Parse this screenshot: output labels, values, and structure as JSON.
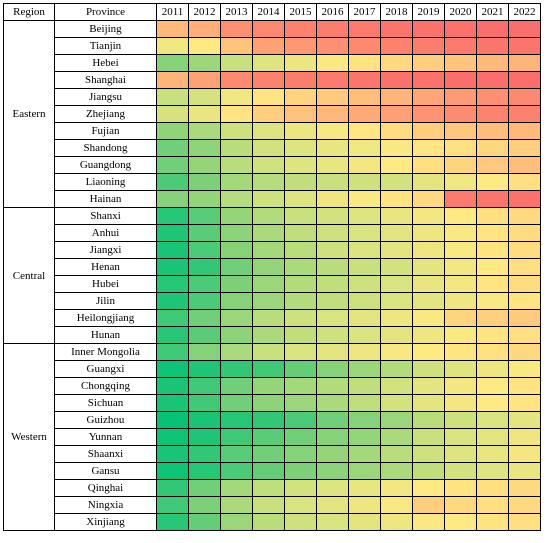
{
  "chart_data": {
    "type": "heatmap",
    "title": "",
    "xlabel": "",
    "ylabel": "",
    "header": {
      "region": "Region",
      "province": "Province"
    },
    "columns": [
      "2011",
      "2012",
      "2013",
      "2014",
      "2015",
      "2016",
      "2017",
      "2018",
      "2019",
      "2020",
      "2021",
      "2022"
    ],
    "value_range": [
      0,
      1
    ],
    "color_scale": [
      "#00c176",
      "#7dd078",
      "#c8e07e",
      "#ffe982",
      "#ffb579",
      "#fa6a6a"
    ],
    "groups": [
      {
        "region": "Eastern",
        "rows": [
          {
            "name": "Beijing",
            "values": [
              0.78,
              0.82,
              0.9,
              0.92,
              0.94,
              0.95,
              0.96,
              0.97,
              0.98,
              0.98,
              0.99,
              0.99
            ]
          },
          {
            "name": "Tianjin",
            "values": [
              0.55,
              0.6,
              0.75,
              0.85,
              0.88,
              0.9,
              0.92,
              0.94,
              0.95,
              0.96,
              0.97,
              0.97
            ]
          },
          {
            "name": "Hebei",
            "values": [
              0.22,
              0.28,
              0.4,
              0.48,
              0.53,
              0.58,
              0.62,
              0.66,
              0.7,
              0.74,
              0.78,
              0.8
            ]
          },
          {
            "name": "Shanghai",
            "values": [
              0.8,
              0.85,
              0.92,
              0.94,
              0.95,
              0.96,
              0.97,
              0.98,
              0.98,
              0.99,
              0.99,
              0.99
            ]
          },
          {
            "name": "Jiangsu",
            "values": [
              0.4,
              0.45,
              0.55,
              0.62,
              0.68,
              0.72,
              0.76,
              0.8,
              0.84,
              0.87,
              0.9,
              0.92
            ]
          },
          {
            "name": "Zhejiang",
            "values": [
              0.45,
              0.52,
              0.62,
              0.7,
              0.75,
              0.79,
              0.83,
              0.86,
              0.89,
              0.91,
              0.93,
              0.94
            ]
          },
          {
            "name": "Fujian",
            "values": [
              0.25,
              0.32,
              0.42,
              0.48,
              0.53,
              0.57,
              0.61,
              0.65,
              0.7,
              0.73,
              0.76,
              0.78
            ]
          },
          {
            "name": "Shandong",
            "values": [
              0.18,
              0.25,
              0.36,
              0.44,
              0.48,
              0.52,
              0.55,
              0.58,
              0.61,
              0.64,
              0.67,
              0.7
            ]
          },
          {
            "name": "Guangdong",
            "values": [
              0.18,
              0.26,
              0.36,
              0.43,
              0.48,
              0.52,
              0.56,
              0.6,
              0.64,
              0.68,
              0.72,
              0.76
            ]
          },
          {
            "name": "Liaoning",
            "values": [
              0.12,
              0.2,
              0.3,
              0.35,
              0.38,
              0.4,
              0.42,
              0.44,
              0.5,
              0.55,
              0.6,
              0.64
            ]
          },
          {
            "name": "Hainan",
            "values": [
              0.22,
              0.26,
              0.35,
              0.42,
              0.48,
              0.54,
              0.58,
              0.62,
              0.66,
              0.96,
              0.97,
              0.98
            ]
          }
        ]
      },
      {
        "region": "Central",
        "rows": [
          {
            "name": "Shanxi",
            "values": [
              0.06,
              0.14,
              0.26,
              0.34,
              0.4,
              0.44,
              0.48,
              0.52,
              0.56,
              0.6,
              0.64,
              0.66
            ]
          },
          {
            "name": "Anhui",
            "values": [
              0.05,
              0.14,
              0.24,
              0.32,
              0.38,
              0.42,
              0.46,
              0.5,
              0.54,
              0.58,
              0.62,
              0.65
            ]
          },
          {
            "name": "Jiangxi",
            "values": [
              0.04,
              0.12,
              0.22,
              0.3,
              0.36,
              0.42,
              0.46,
              0.5,
              0.54,
              0.58,
              0.62,
              0.65
            ]
          },
          {
            "name": "Henan",
            "values": [
              0.04,
              0.08,
              0.18,
              0.26,
              0.32,
              0.36,
              0.4,
              0.44,
              0.5,
              0.56,
              0.6,
              0.64
            ]
          },
          {
            "name": "Hubei",
            "values": [
              0.06,
              0.12,
              0.2,
              0.28,
              0.34,
              0.38,
              0.42,
              0.46,
              0.52,
              0.56,
              0.62,
              0.65
            ]
          },
          {
            "name": "Jilin",
            "values": [
              0.05,
              0.12,
              0.22,
              0.28,
              0.34,
              0.38,
              0.42,
              0.46,
              0.5,
              0.54,
              0.58,
              0.62
            ]
          },
          {
            "name": "Heilongjiang",
            "values": [
              0.1,
              0.18,
              0.28,
              0.36,
              0.42,
              0.46,
              0.5,
              0.54,
              0.58,
              0.68,
              0.7,
              0.72
            ]
          },
          {
            "name": "Hunan",
            "values": [
              0.06,
              0.14,
              0.24,
              0.32,
              0.38,
              0.42,
              0.46,
              0.5,
              0.54,
              0.58,
              0.62,
              0.64
            ]
          }
        ]
      },
      {
        "region": "Western",
        "rows": [
          {
            "name": "Inner Mongolia",
            "values": [
              0.1,
              0.22,
              0.32,
              0.4,
              0.46,
              0.5,
              0.54,
              0.57,
              0.6,
              0.62,
              0.64,
              0.66
            ]
          },
          {
            "name": "Guangxi",
            "values": [
              0.02,
              0.05,
              0.08,
              0.1,
              0.16,
              0.22,
              0.28,
              0.34,
              0.42,
              0.48,
              0.54,
              0.58
            ]
          },
          {
            "name": "Chongqing",
            "values": [
              0.04,
              0.1,
              0.18,
              0.26,
              0.3,
              0.34,
              0.38,
              0.44,
              0.5,
              0.56,
              0.6,
              0.62
            ]
          },
          {
            "name": "Sichuan",
            "values": [
              0.04,
              0.1,
              0.18,
              0.24,
              0.28,
              0.32,
              0.38,
              0.44,
              0.5,
              0.56,
              0.6,
              0.62
            ]
          },
          {
            "name": "Guizhou",
            "values": [
              0.01,
              0.04,
              0.06,
              0.08,
              0.12,
              0.18,
              0.22,
              0.28,
              0.36,
              0.42,
              0.46,
              0.5
            ]
          },
          {
            "name": "Yunnan",
            "values": [
              0.02,
              0.05,
              0.1,
              0.14,
              0.18,
              0.22,
              0.26,
              0.32,
              0.4,
              0.46,
              0.5,
              0.54
            ]
          },
          {
            "name": "Shaanxi",
            "values": [
              0.04,
              0.08,
              0.14,
              0.18,
              0.22,
              0.26,
              0.3,
              0.36,
              0.42,
              0.48,
              0.52,
              0.56
            ]
          },
          {
            "name": "Gansu",
            "values": [
              0.02,
              0.06,
              0.12,
              0.16,
              0.2,
              0.24,
              0.28,
              0.32,
              0.38,
              0.44,
              0.48,
              0.52
            ]
          },
          {
            "name": "Qinghai",
            "values": [
              0.08,
              0.18,
              0.3,
              0.38,
              0.44,
              0.48,
              0.52,
              0.56,
              0.6,
              0.62,
              0.64,
              0.66
            ]
          },
          {
            "name": "Ningxia",
            "values": [
              0.1,
              0.2,
              0.32,
              0.4,
              0.46,
              0.5,
              0.54,
              0.58,
              0.7,
              0.66,
              0.64,
              0.66
            ]
          },
          {
            "name": "Xinjiang",
            "values": [
              0.06,
              0.16,
              0.28,
              0.36,
              0.42,
              0.46,
              0.5,
              0.54,
              0.58,
              0.6,
              0.62,
              0.64
            ]
          }
        ]
      }
    ]
  }
}
